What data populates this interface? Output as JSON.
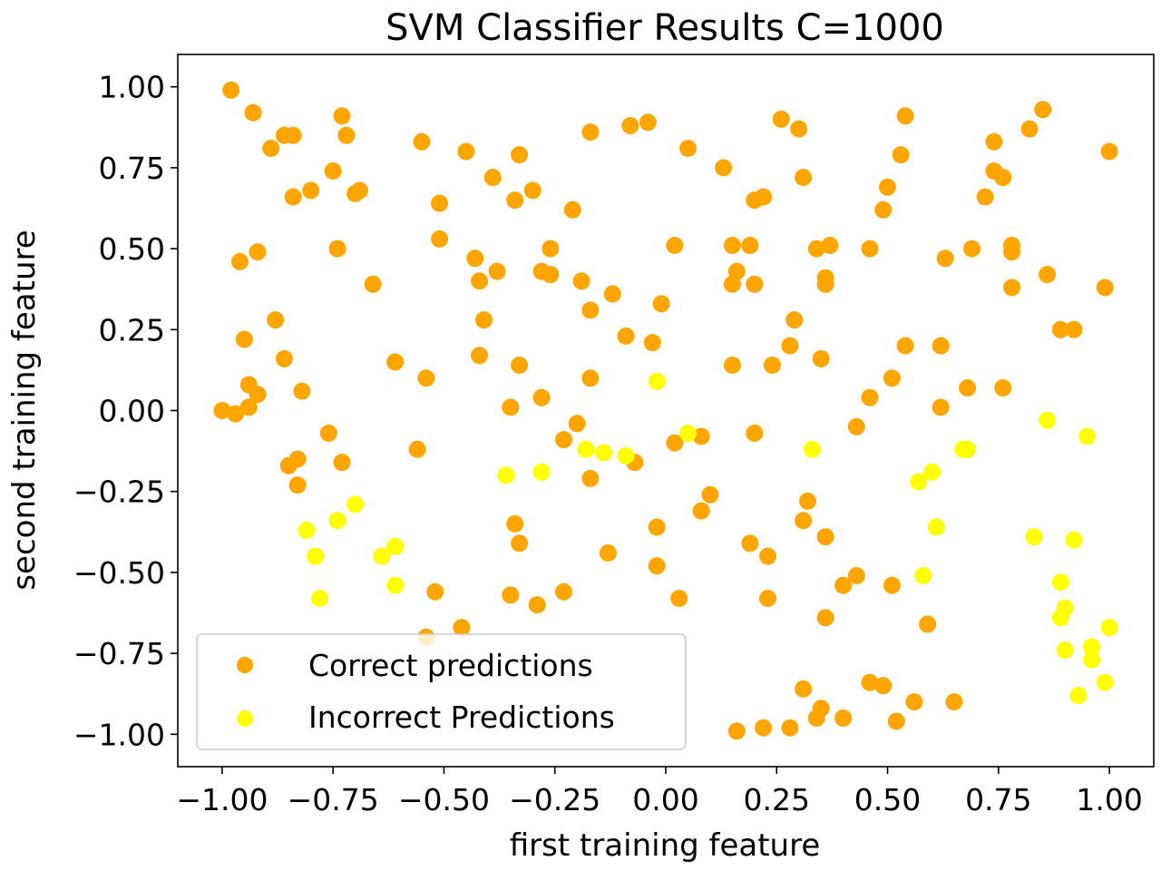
{
  "chart_data": {
    "type": "scatter",
    "title": "SVM Classifier Results C=1000",
    "xlabel": "first training feature",
    "ylabel": "second training feature",
    "xlim": [
      -1.1,
      1.1
    ],
    "ylim": [
      -1.1,
      1.1
    ],
    "xticks": [
      -1.0,
      -0.75,
      -0.5,
      -0.25,
      0.0,
      0.25,
      0.5,
      0.75,
      1.0
    ],
    "yticks": [
      -1.0,
      -0.75,
      -0.5,
      -0.25,
      0.0,
      0.25,
      0.5,
      0.75,
      1.0
    ],
    "xtick_labels": [
      "−1.00",
      "−0.75",
      "−0.50",
      "−0.25",
      "0.00",
      "0.25",
      "0.50",
      "0.75",
      "1.00"
    ],
    "ytick_labels": [
      "−1.00",
      "−0.75",
      "−0.50",
      "−0.25",
      "0.00",
      "0.25",
      "0.50",
      "0.75",
      "1.00"
    ],
    "grid": false,
    "legend_position": "lower-left",
    "series": [
      {
        "name": "Correct predictions",
        "color": "#FFA500",
        "points": [
          [
            -0.98,
            0.99
          ],
          [
            -0.93,
            0.92
          ],
          [
            -0.89,
            0.81
          ],
          [
            -0.86,
            0.85
          ],
          [
            -0.84,
            0.85
          ],
          [
            -0.84,
            0.66
          ],
          [
            -0.8,
            0.68
          ],
          [
            -0.75,
            0.74
          ],
          [
            -0.73,
            0.91
          ],
          [
            -0.72,
            0.85
          ],
          [
            -0.7,
            0.67
          ],
          [
            -0.69,
            0.68
          ],
          [
            -0.96,
            0.46
          ],
          [
            -0.92,
            0.49
          ],
          [
            -0.74,
            0.5
          ],
          [
            -0.66,
            0.39
          ],
          [
            -0.88,
            0.28
          ],
          [
            -0.95,
            0.22
          ],
          [
            -0.86,
            0.16
          ],
          [
            -0.94,
            0.08
          ],
          [
            -0.92,
            0.05
          ],
          [
            -0.94,
            0.01
          ],
          [
            -1.0,
            0.0
          ],
          [
            -0.97,
            -0.01
          ],
          [
            -0.82,
            0.06
          ],
          [
            -0.76,
            -0.07
          ],
          [
            -0.73,
            -0.16
          ],
          [
            -0.85,
            -0.17
          ],
          [
            -0.83,
            -0.15
          ],
          [
            -0.83,
            -0.23
          ],
          [
            -0.55,
            0.83
          ],
          [
            -0.45,
            0.8
          ],
          [
            -0.39,
            0.72
          ],
          [
            -0.33,
            0.79
          ],
          [
            -0.34,
            0.65
          ],
          [
            -0.3,
            0.68
          ],
          [
            -0.51,
            0.64
          ],
          [
            -0.51,
            0.53
          ],
          [
            -0.43,
            0.47
          ],
          [
            -0.42,
            0.4
          ],
          [
            -0.38,
            0.43
          ],
          [
            -0.41,
            0.28
          ],
          [
            -0.28,
            0.43
          ],
          [
            -0.26,
            0.5
          ],
          [
            -0.26,
            0.42
          ],
          [
            -0.42,
            0.17
          ],
          [
            -0.61,
            0.15
          ],
          [
            -0.54,
            0.1
          ],
          [
            -0.33,
            0.14
          ],
          [
            -0.35,
            0.01
          ],
          [
            -0.28,
            0.04
          ],
          [
            -0.56,
            -0.12
          ],
          [
            -0.17,
            0.86
          ],
          [
            -0.08,
            0.88
          ],
          [
            -0.04,
            0.89
          ],
          [
            0.05,
            0.81
          ],
          [
            -0.21,
            0.62
          ],
          [
            -0.19,
            0.4
          ],
          [
            -0.17,
            0.31
          ],
          [
            -0.12,
            0.36
          ],
          [
            -0.09,
            0.23
          ],
          [
            -0.03,
            0.21
          ],
          [
            -0.01,
            0.33
          ],
          [
            0.02,
            0.51
          ],
          [
            -0.17,
            0.1
          ],
          [
            -0.2,
            -0.04
          ],
          [
            -0.23,
            -0.09
          ],
          [
            -0.17,
            -0.21
          ],
          [
            -0.07,
            -0.16
          ],
          [
            0.02,
            -0.1
          ],
          [
            0.08,
            -0.08
          ],
          [
            -0.34,
            -0.35
          ],
          [
            -0.33,
            -0.41
          ],
          [
            -0.35,
            -0.57
          ],
          [
            -0.29,
            -0.6
          ],
          [
            -0.23,
            -0.56
          ],
          [
            -0.52,
            -0.56
          ],
          [
            -0.54,
            -0.7
          ],
          [
            -0.46,
            -0.67
          ],
          [
            -0.13,
            -0.44
          ],
          [
            -0.02,
            -0.36
          ],
          [
            -0.02,
            -0.48
          ],
          [
            0.03,
            -0.58
          ],
          [
            0.08,
            -0.31
          ],
          [
            0.1,
            -0.26
          ],
          [
            0.13,
            0.75
          ],
          [
            0.26,
            0.9
          ],
          [
            0.3,
            0.87
          ],
          [
            0.31,
            0.72
          ],
          [
            0.2,
            0.65
          ],
          [
            0.22,
            0.66
          ],
          [
            0.15,
            0.51
          ],
          [
            0.19,
            0.51
          ],
          [
            0.16,
            0.43
          ],
          [
            0.15,
            0.39
          ],
          [
            0.2,
            0.39
          ],
          [
            0.29,
            0.28
          ],
          [
            0.28,
            0.2
          ],
          [
            0.24,
            0.14
          ],
          [
            0.15,
            0.14
          ],
          [
            0.34,
            0.5
          ],
          [
            0.37,
            0.51
          ],
          [
            0.36,
            0.41
          ],
          [
            0.36,
            0.39
          ],
          [
            0.35,
            0.16
          ],
          [
            0.2,
            -0.07
          ],
          [
            0.32,
            -0.28
          ],
          [
            0.31,
            -0.34
          ],
          [
            0.36,
            -0.39
          ],
          [
            0.19,
            -0.41
          ],
          [
            0.23,
            -0.45
          ],
          [
            0.23,
            -0.58
          ],
          [
            0.36,
            -0.64
          ],
          [
            0.31,
            -0.86
          ],
          [
            0.35,
            -0.92
          ],
          [
            0.34,
            -0.95
          ],
          [
            0.4,
            -0.95
          ],
          [
            0.28,
            -0.98
          ],
          [
            0.22,
            -0.98
          ],
          [
            0.16,
            -0.99
          ],
          [
            0.54,
            0.91
          ],
          [
            0.53,
            0.79
          ],
          [
            0.5,
            0.69
          ],
          [
            0.49,
            0.62
          ],
          [
            0.46,
            0.5
          ],
          [
            0.54,
            0.2
          ],
          [
            0.51,
            0.1
          ],
          [
            0.46,
            0.04
          ],
          [
            0.43,
            -0.05
          ],
          [
            0.43,
            -0.51
          ],
          [
            0.4,
            -0.54
          ],
          [
            0.51,
            -0.54
          ],
          [
            0.46,
            -0.84
          ],
          [
            0.49,
            -0.85
          ],
          [
            0.52,
            -0.96
          ],
          [
            0.56,
            -0.9
          ],
          [
            0.59,
            -0.66
          ],
          [
            0.65,
            -0.9
          ],
          [
            0.63,
            0.47
          ],
          [
            0.69,
            0.5
          ],
          [
            0.62,
            0.2
          ],
          [
            0.62,
            0.01
          ],
          [
            0.68,
            0.07
          ],
          [
            0.76,
            0.07
          ],
          [
            0.72,
            0.66
          ],
          [
            0.74,
            0.83
          ],
          [
            0.74,
            0.74
          ],
          [
            0.76,
            0.72
          ],
          [
            0.78,
            0.51
          ],
          [
            0.78,
            0.49
          ],
          [
            0.78,
            0.38
          ],
          [
            0.82,
            0.87
          ],
          [
            0.85,
            0.93
          ],
          [
            0.86,
            0.42
          ],
          [
            0.89,
            0.25
          ],
          [
            0.92,
            0.25
          ],
          [
            0.99,
            0.38
          ],
          [
            1.0,
            0.8
          ]
        ]
      },
      {
        "name": "Incorrect Predictions",
        "color": "#FFFF00",
        "points": [
          [
            -0.81,
            -0.37
          ],
          [
            -0.79,
            -0.45
          ],
          [
            -0.78,
            -0.58
          ],
          [
            -0.74,
            -0.34
          ],
          [
            -0.7,
            -0.29
          ],
          [
            -0.64,
            -0.45
          ],
          [
            -0.61,
            -0.42
          ],
          [
            -0.61,
            -0.54
          ],
          [
            -0.36,
            -0.2
          ],
          [
            -0.28,
            -0.19
          ],
          [
            -0.18,
            -0.12
          ],
          [
            -0.14,
            -0.13
          ],
          [
            -0.09,
            -0.14
          ],
          [
            -0.02,
            0.09
          ],
          [
            0.05,
            -0.07
          ],
          [
            0.33,
            -0.12
          ],
          [
            0.57,
            -0.22
          ],
          [
            0.6,
            -0.19
          ],
          [
            0.61,
            -0.36
          ],
          [
            0.58,
            -0.51
          ],
          [
            0.67,
            -0.12
          ],
          [
            0.68,
            -0.12
          ],
          [
            0.86,
            -0.03
          ],
          [
            0.95,
            -0.08
          ],
          [
            0.83,
            -0.39
          ],
          [
            0.92,
            -0.4
          ],
          [
            0.89,
            -0.53
          ],
          [
            0.9,
            -0.61
          ],
          [
            0.89,
            -0.64
          ],
          [
            0.9,
            -0.74
          ],
          [
            0.96,
            -0.73
          ],
          [
            0.96,
            -0.77
          ],
          [
            0.93,
            -0.88
          ],
          [
            0.99,
            -0.84
          ],
          [
            1.0,
            -0.67
          ]
        ]
      }
    ]
  }
}
